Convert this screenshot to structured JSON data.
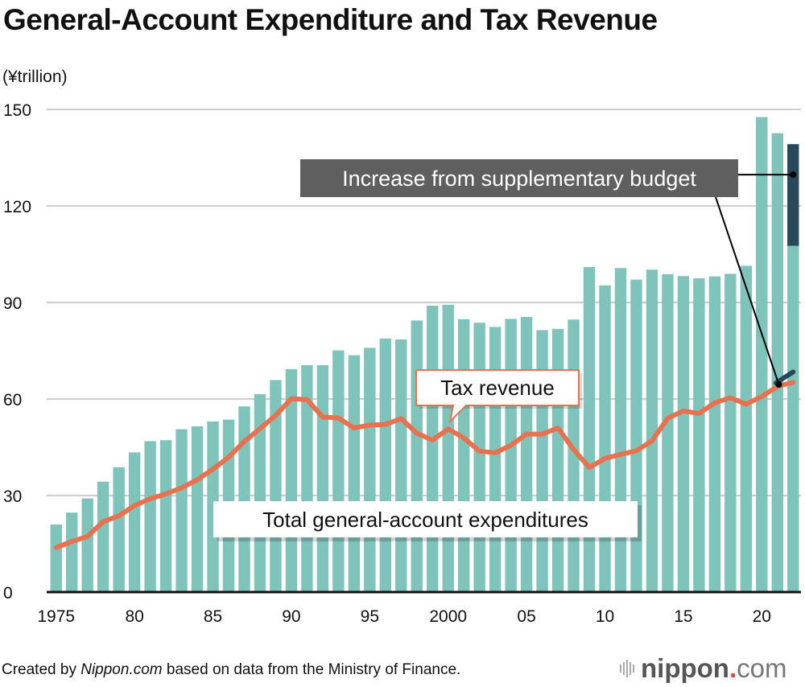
{
  "title": "General-Account Expenditure and Tax Revenue",
  "unit_label": "(¥trillion)",
  "footer": {
    "prefix": "Created by ",
    "source_italic": "Nippon.com",
    "suffix": " based on data from the Ministry of Finance."
  },
  "logo": {
    "name": "nippon",
    "dot": ".",
    "tld": "com"
  },
  "colors": {
    "bar": "#7fc4ba",
    "supplementary": "#27495a",
    "tax_line": "#e8714f",
    "annotation_box": "#5f5f5f",
    "gridline": "#cccccc"
  },
  "chart_data": {
    "type": "bar",
    "title": "General-Account Expenditure and Tax Revenue",
    "xlabel": "",
    "ylabel": "(¥trillion)",
    "ylim": [
      0,
      150
    ],
    "yticks": [
      0,
      30,
      60,
      90,
      120,
      150
    ],
    "grid": true,
    "x": [
      1975,
      1976,
      1977,
      1978,
      1979,
      1980,
      1981,
      1982,
      1983,
      1984,
      1985,
      1986,
      1987,
      1988,
      1989,
      1990,
      1991,
      1992,
      1993,
      1994,
      1995,
      1996,
      1997,
      1998,
      1999,
      2000,
      2001,
      2002,
      2003,
      2004,
      2005,
      2006,
      2007,
      2008,
      2009,
      2010,
      2011,
      2012,
      2013,
      2014,
      2015,
      2016,
      2017,
      2018,
      2019,
      2020,
      2021,
      2022
    ],
    "xtick_labels": [
      {
        "year": 1975,
        "label": "1975"
      },
      {
        "year": 1980,
        "label": "80"
      },
      {
        "year": 1985,
        "label": "85"
      },
      {
        "year": 1990,
        "label": "90"
      },
      {
        "year": 1995,
        "label": "95"
      },
      {
        "year": 2000,
        "label": "2000"
      },
      {
        "year": 2005,
        "label": "05"
      },
      {
        "year": 2010,
        "label": "10"
      },
      {
        "year": 2015,
        "label": "15"
      },
      {
        "year": 2020,
        "label": "20"
      }
    ],
    "series": [
      {
        "name": "Total general-account expenditures",
        "type": "bar",
        "values": [
          21.0,
          24.7,
          29.1,
          34.3,
          38.8,
          43.4,
          46.9,
          47.2,
          50.6,
          51.5,
          53.0,
          53.6,
          57.7,
          61.5,
          65.9,
          69.3,
          70.5,
          70.5,
          75.1,
          73.6,
          75.9,
          78.8,
          78.5,
          84.4,
          89.0,
          89.3,
          84.8,
          83.7,
          82.4,
          84.9,
          85.5,
          81.4,
          81.8,
          84.7,
          101.0,
          95.3,
          100.7,
          97.1,
          100.2,
          98.8,
          98.2,
          97.5,
          98.1,
          98.9,
          101.4,
          147.6,
          142.6,
          107.6
        ]
      },
      {
        "name": "Increase from supplementary budget",
        "type": "stacked-bar",
        "year": 2022,
        "base": 107.6,
        "value": 31.6
      },
      {
        "name": "Tax revenue",
        "type": "line",
        "values": [
          13.8,
          15.7,
          17.3,
          21.9,
          23.7,
          26.9,
          29.0,
          30.5,
          32.4,
          34.9,
          38.2,
          41.9,
          46.8,
          50.8,
          54.9,
          60.1,
          59.8,
          54.4,
          54.1,
          51.0,
          51.9,
          52.1,
          53.9,
          49.4,
          47.2,
          50.7,
          47.9,
          43.8,
          43.3,
          45.6,
          49.1,
          49.1,
          51.0,
          44.3,
          38.7,
          41.5,
          42.8,
          43.9,
          47.0,
          54.0,
          56.3,
          55.5,
          58.8,
          60.4,
          58.4,
          60.8,
          63.9,
          65.2
        ]
      },
      {
        "name": "Tax revenue supplementary increase",
        "type": "line-segment",
        "x": [
          2021,
          2022
        ],
        "values": [
          65.0,
          68.4
        ]
      }
    ],
    "annotations": {
      "tax": "Tax revenue",
      "total": "Total general-account expenditures",
      "supplementary": "Increase from supplementary budget"
    }
  }
}
